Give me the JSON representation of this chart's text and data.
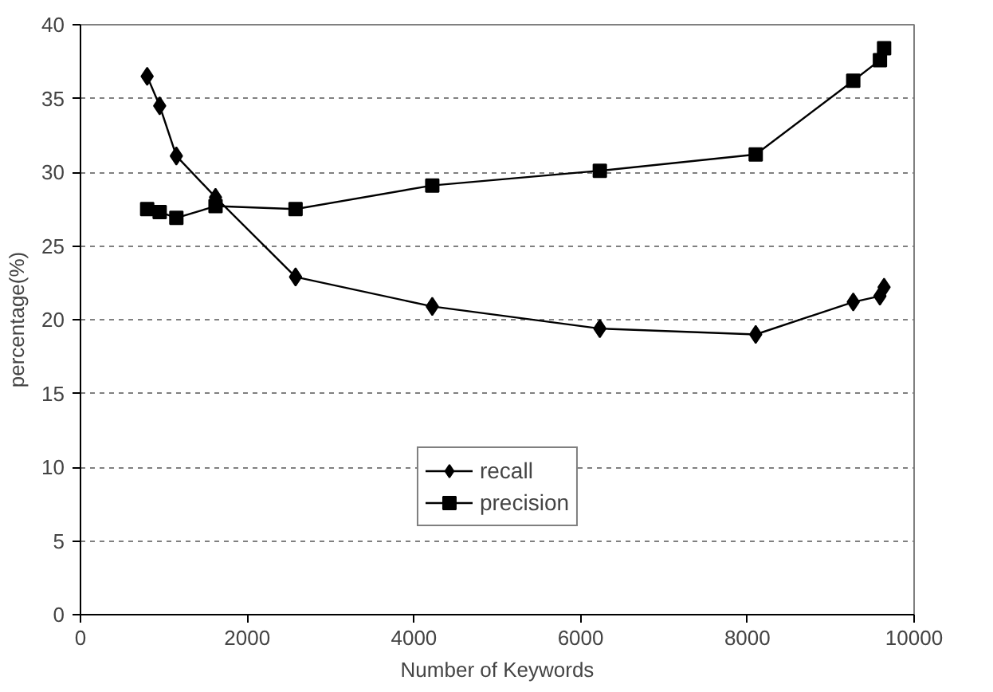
{
  "chart_data": {
    "type": "line",
    "xlabel": "Number of Keywords",
    "ylabel": "percentage(%)",
    "xlim": [
      0,
      10000
    ],
    "xticks": [
      0,
      2000,
      4000,
      6000,
      8000,
      10000
    ],
    "ylim": [
      0,
      40
    ],
    "yticks": [
      0,
      5,
      10,
      15,
      20,
      25,
      30,
      35,
      40
    ],
    "grid": "y",
    "legend": "bottom",
    "line_style": "solid",
    "series": [
      {
        "name": "recall",
        "color": "#000000",
        "marker": "diamond",
        "x": [
          800,
          950,
          1150,
          1620,
          2580,
          4220,
          6230,
          8100,
          9270,
          9590,
          9640
        ],
        "values": [
          36.5,
          34.5,
          31.1,
          28.3,
          22.9,
          20.9,
          19.4,
          19.0,
          21.2,
          21.6,
          22.2
        ]
      },
      {
        "name": "precision",
        "color": "#000000",
        "marker": "square",
        "x": [
          800,
          950,
          1150,
          1620,
          2580,
          4220,
          6230,
          8100,
          9270,
          9590,
          9640
        ],
        "values": [
          27.5,
          27.3,
          26.9,
          27.7,
          27.5,
          29.1,
          30.1,
          31.2,
          36.2,
          37.6,
          38.4
        ]
      }
    ]
  }
}
